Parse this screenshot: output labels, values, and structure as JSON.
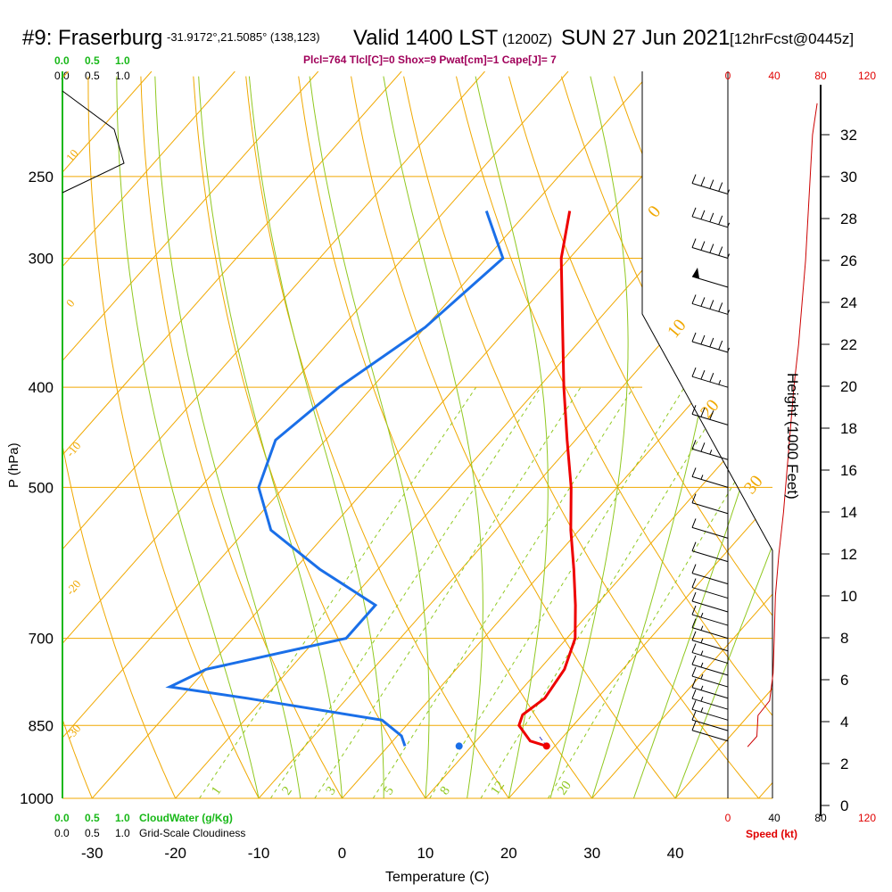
{
  "header": {
    "station": "#9: Fraserburg",
    "coords": "-31.9172°,21.5085° (138,123)",
    "valid": "Valid 1400 LST",
    "valid_z": "(1200Z)",
    "date": "SUN 27 Jun 2021",
    "fcst": "[12hrFcst@0445z]",
    "indices": "Plcl=764 Tlcl[C]=0 Shox=9 Pwat[cm]=1 Cape[J]= 7"
  },
  "colors": {
    "temp": "#ee0000",
    "dewpoint": "#1a6fe8",
    "isotherm": "#f0a800",
    "moist": "#90c820",
    "index_text": "#a0005a",
    "speed": "#e00000",
    "cloud_green": "#18b818"
  },
  "labels": {
    "temp_axis": "Temperature (C)",
    "pressure_axis": "P (hPa)",
    "height_axis": "Height (1000 Feet)",
    "speed_axis": "Speed (kt)",
    "cloudwater": "CloudWater (g/Kg)",
    "cloudiness": "Grid-Scale Cloudiness",
    "cloud_scale_top_green": [
      "0.0",
      "0.5",
      "1.0"
    ],
    "cloud_scale_top_black": [
      "0.0",
      "0.5",
      "1.0"
    ],
    "cloud_scale_bot_green": [
      "0.0",
      "0.5",
      "1.0"
    ],
    "cloud_scale_bot_black": [
      "0.0",
      "0.5",
      "1.0"
    ]
  },
  "chart_data": {
    "type": "line",
    "title": "#9: Fraserburg Valid 1400 LST SUN 27 Jun 2021",
    "xlabel": "Temperature (C)",
    "ylabel": "P (hPa)",
    "pressure_levels": [
      250,
      300,
      400,
      500,
      700,
      850,
      1000
    ],
    "temperature_ticks": [
      -30,
      -20,
      -10,
      0,
      10,
      20,
      30,
      40
    ],
    "height_ticks_kft": [
      0,
      2,
      4,
      6,
      8,
      10,
      12,
      14,
      16,
      18,
      20,
      22,
      24,
      26,
      28,
      30,
      32
    ],
    "speed_ticks_top": [
      0,
      40,
      80,
      120
    ],
    "speed_ticks_bottom": [
      0,
      40,
      80,
      120
    ],
    "isotherm_labels": [
      "10",
      "0",
      "-10",
      "-20",
      "-30",
      "0",
      "10",
      "20",
      "30"
    ],
    "mixing_ratio_labels": [
      "1",
      "2",
      "3",
      "5",
      "8",
      "12",
      "20"
    ],
    "series": [
      {
        "name": "Temperature",
        "points": [
          {
            "p": 270,
            "t": -35.0
          },
          {
            "p": 300,
            "t": -31.0
          },
          {
            "p": 350,
            "t": -23.5
          },
          {
            "p": 400,
            "t": -17.0
          },
          {
            "p": 450,
            "t": -11.0
          },
          {
            "p": 500,
            "t": -5.5
          },
          {
            "p": 550,
            "t": -1.0
          },
          {
            "p": 600,
            "t": 3.5
          },
          {
            "p": 650,
            "t": 7.5
          },
          {
            "p": 700,
            "t": 11.0
          },
          {
            "p": 750,
            "t": 13.0
          },
          {
            "p": 800,
            "t": 13.7
          },
          {
            "p": 830,
            "t": 12.8
          },
          {
            "p": 850,
            "t": 13.5
          },
          {
            "p": 880,
            "t": 16.5
          },
          {
            "p": 890,
            "t": 19.0
          }
        ]
      },
      {
        "name": "Dewpoint",
        "points": [
          {
            "p": 270,
            "t": -45.0
          },
          {
            "p": 300,
            "t": -38.0
          },
          {
            "p": 350,
            "t": -40.0
          },
          {
            "p": 400,
            "t": -44.0
          },
          {
            "p": 450,
            "t": -46.0
          },
          {
            "p": 500,
            "t": -43.0
          },
          {
            "p": 550,
            "t": -37.0
          },
          {
            "p": 600,
            "t": -27.0
          },
          {
            "p": 650,
            "t": -16.5
          },
          {
            "p": 700,
            "t": -16.5
          },
          {
            "p": 750,
            "t": -30.0
          },
          {
            "p": 780,
            "t": -32.5
          },
          {
            "p": 800,
            "t": -22.0
          },
          {
            "p": 840,
            "t": -3.5
          },
          {
            "p": 870,
            "t": 0.5
          },
          {
            "p": 890,
            "t": 2.0
          }
        ]
      },
      {
        "name": "Parcel",
        "points": [
          {
            "p": 890,
            "t": 19.0
          },
          {
            "p": 870,
            "t": 17.0
          }
        ]
      }
    ],
    "surface_temp_c": 19.0,
    "surface_dewpoint_c": 2.0,
    "surface_pressure_hpa": 890,
    "wind_speed_profile": [
      {
        "h": 2.8,
        "kt": 17
      },
      {
        "h": 3.3,
        "kt": 25
      },
      {
        "h": 4.3,
        "kt": 26
      },
      {
        "h": 5.0,
        "kt": 36
      },
      {
        "h": 6.3,
        "kt": 39
      },
      {
        "h": 8.0,
        "kt": 40
      },
      {
        "h": 10.0,
        "kt": 41
      },
      {
        "h": 12.0,
        "kt": 44
      },
      {
        "h": 14.0,
        "kt": 48
      },
      {
        "h": 16.0,
        "kt": 51
      },
      {
        "h": 18.0,
        "kt": 54
      },
      {
        "h": 20.0,
        "kt": 57
      },
      {
        "h": 22.0,
        "kt": 61
      },
      {
        "h": 24.0,
        "kt": 64
      },
      {
        "h": 26.0,
        "kt": 67
      },
      {
        "h": 28.0,
        "kt": 69
      },
      {
        "h": 30.0,
        "kt": 71
      },
      {
        "h": 32.0,
        "kt": 73
      },
      {
        "h": 33.5,
        "kt": 77
      }
    ],
    "wind_barbs": [
      {
        "p": 260,
        "kt": 45
      },
      {
        "p": 280,
        "kt": 45
      },
      {
        "p": 300,
        "kt": 45
      },
      {
        "p": 320,
        "kt": 50
      },
      {
        "p": 340,
        "kt": 45
      },
      {
        "p": 370,
        "kt": 45
      },
      {
        "p": 400,
        "kt": 35
      },
      {
        "p": 435,
        "kt": 30
      },
      {
        "p": 470,
        "kt": 25
      },
      {
        "p": 500,
        "kt": 15
      },
      {
        "p": 530,
        "kt": 10
      },
      {
        "p": 560,
        "kt": 10
      },
      {
        "p": 590,
        "kt": 10
      },
      {
        "p": 620,
        "kt": 10
      },
      {
        "p": 640,
        "kt": 10
      },
      {
        "p": 660,
        "kt": 10
      },
      {
        "p": 680,
        "kt": 15
      },
      {
        "p": 700,
        "kt": 15
      },
      {
        "p": 720,
        "kt": 15
      },
      {
        "p": 740,
        "kt": 15
      },
      {
        "p": 760,
        "kt": 15
      },
      {
        "p": 780,
        "kt": 15
      },
      {
        "p": 800,
        "kt": 15
      },
      {
        "p": 820,
        "kt": 15
      },
      {
        "p": 840,
        "kt": 15
      },
      {
        "p": 860,
        "kt": 10
      },
      {
        "p": 880,
        "kt": 10
      }
    ]
  }
}
